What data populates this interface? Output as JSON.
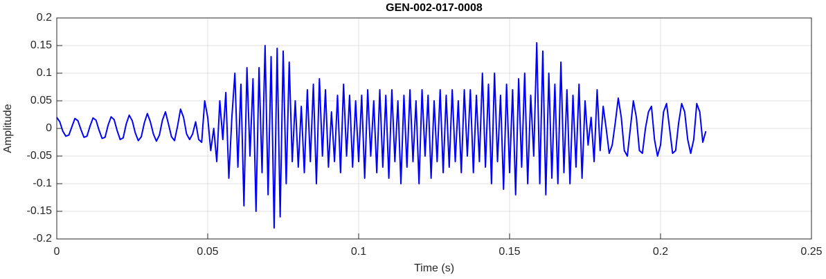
{
  "chart_data": {
    "type": "line",
    "title": "GEN-002-017-0008",
    "x_label": "Time (s)",
    "y_label": "Amplitude",
    "color": "#0000ff",
    "grid": true,
    "xlim": [
      0,
      0.25
    ],
    "xticks": [
      0,
      0.05,
      0.1,
      0.15,
      0.2,
      0.25
    ],
    "ylim": [
      -0.2,
      0.2
    ],
    "yticks": [
      -0.2,
      -0.15,
      -0.1,
      -0.05,
      0,
      0.05,
      0.1,
      0.15,
      0.2
    ],
    "x": [
      0,
      0.001,
      0.002,
      0.003,
      0.004,
      0.005,
      0.006,
      0.007,
      0.008,
      0.009,
      0.01,
      0.011,
      0.012,
      0.013,
      0.014,
      0.015,
      0.016,
      0.017,
      0.018,
      0.019,
      0.02,
      0.021,
      0.022,
      0.023,
      0.024,
      0.025,
      0.026,
      0.027,
      0.028,
      0.029,
      0.03,
      0.031,
      0.032,
      0.033,
      0.034,
      0.035,
      0.036,
      0.037,
      0.038,
      0.039,
      0.04,
      0.041,
      0.042,
      0.043,
      0.044,
      0.045,
      0.046,
      0.047,
      0.048,
      0.049,
      0.05,
      0.051,
      0.052,
      0.053,
      0.054,
      0.055,
      0.056,
      0.057,
      0.058,
      0.059,
      0.06,
      0.061,
      0.062,
      0.063,
      0.064,
      0.065,
      0.066,
      0.067,
      0.068,
      0.069,
      0.07,
      0.071,
      0.072,
      0.073,
      0.074,
      0.075,
      0.076,
      0.077,
      0.078,
      0.079,
      0.08,
      0.081,
      0.082,
      0.083,
      0.084,
      0.085,
      0.086,
      0.087,
      0.088,
      0.089,
      0.09,
      0.091,
      0.092,
      0.093,
      0.094,
      0.095,
      0.096,
      0.097,
      0.098,
      0.099,
      0.1,
      0.101,
      0.102,
      0.103,
      0.104,
      0.105,
      0.106,
      0.107,
      0.108,
      0.109,
      0.11,
      0.111,
      0.112,
      0.113,
      0.114,
      0.115,
      0.116,
      0.117,
      0.118,
      0.119,
      0.12,
      0.121,
      0.122,
      0.123,
      0.124,
      0.125,
      0.126,
      0.127,
      0.128,
      0.129,
      0.13,
      0.131,
      0.132,
      0.133,
      0.134,
      0.135,
      0.136,
      0.137,
      0.138,
      0.139,
      0.14,
      0.141,
      0.142,
      0.143,
      0.144,
      0.145,
      0.146,
      0.147,
      0.148,
      0.149,
      0.15,
      0.151,
      0.152,
      0.153,
      0.154,
      0.155,
      0.156,
      0.157,
      0.158,
      0.159,
      0.16,
      0.161,
      0.162,
      0.163,
      0.164,
      0.165,
      0.166,
      0.167,
      0.168,
      0.169,
      0.17,
      0.171,
      0.172,
      0.173,
      0.174,
      0.175,
      0.176,
      0.177,
      0.178,
      0.179,
      0.18,
      0.181,
      0.182,
      0.183,
      0.184,
      0.185,
      0.186,
      0.187,
      0.188,
      0.189,
      0.19,
      0.191,
      0.192,
      0.193,
      0.194,
      0.195,
      0.196,
      0.197,
      0.198,
      0.199,
      0.2,
      0.201,
      0.202,
      0.203,
      0.204,
      0.205,
      0.206,
      0.207,
      0.208,
      0.209,
      0.21,
      0.211,
      0.212,
      0.213,
      0.214,
      0.215
    ],
    "values": [
      0.02,
      0.012,
      -0.005,
      -0.014,
      -0.012,
      0.003,
      0.018,
      0.014,
      -0.002,
      -0.016,
      -0.014,
      0.004,
      0.019,
      0.015,
      -0.003,
      -0.018,
      -0.016,
      0.006,
      0.021,
      0.016,
      -0.004,
      -0.02,
      -0.017,
      0.008,
      0.024,
      0.014,
      -0.008,
      -0.022,
      -0.015,
      0.01,
      0.027,
      0.012,
      -0.01,
      -0.023,
      -0.012,
      0.015,
      0.03,
      0.008,
      -0.015,
      -0.022,
      0.004,
      0.035,
      0.02,
      -0.01,
      -0.02,
      -0.01,
      0.012,
      -0.02,
      -0.025,
      0.05,
      0.02,
      -0.04,
      0,
      -0.06,
      0.05,
      -0.02,
      0.065,
      -0.09,
      0.02,
      0.1,
      -0.07,
      0.08,
      -0.14,
      0.11,
      -0.05,
      0.09,
      -0.15,
      0.11,
      -0.08,
      0.15,
      -0.12,
      0.13,
      -0.18,
      0.145,
      -0.16,
      0.14,
      -0.1,
      0.12,
      -0.06,
      0.05,
      -0.07,
      0.04,
      -0.08,
      0.07,
      -0.06,
      0.08,
      -0.1,
      0.09,
      -0.05,
      0.07,
      -0.07,
      0.03,
      -0.06,
      0.06,
      -0.08,
      0.08,
      -0.05,
      0.06,
      -0.07,
      0.05,
      -0.06,
      0.06,
      -0.09,
      0.07,
      -0.05,
      0.05,
      -0.08,
      0.07,
      -0.07,
      0.06,
      -0.09,
      0.07,
      -0.06,
      0.05,
      -0.1,
      0.06,
      -0.07,
      0.07,
      -0.06,
      0.05,
      -0.1,
      0.07,
      -0.05,
      0.06,
      -0.09,
      0.05,
      -0.06,
      0.07,
      -0.08,
      0.06,
      -0.07,
      0.07,
      -0.06,
      0.05,
      -0.08,
      0.07,
      -0.05,
      0.07,
      -0.08,
      0.06,
      -0.06,
      0.1,
      -0.07,
      0.08,
      -0.1,
      0.1,
      -0.06,
      0.06,
      -0.11,
      0.08,
      -0.08,
      0.07,
      -0.12,
      0.09,
      -0.07,
      0.1,
      -0.1,
      0.06,
      -0.05,
      0.155,
      -0.1,
      0.14,
      -0.12,
      0.1,
      -0.09,
      0.08,
      -0.1,
      0.12,
      -0.08,
      0.07,
      -0.1,
      0.06,
      -0.07,
      0.08,
      -0.09,
      0.05,
      -0.03,
      0.02,
      -0.06,
      0.07,
      -0.04,
      0.04,
      0,
      -0.045,
      -0.03,
      0.01,
      0.055,
      0.02,
      -0.04,
      -0.05,
      0,
      0.05,
      0.02,
      -0.04,
      -0.045,
      0,
      0.03,
      0.04,
      -0.02,
      -0.05,
      -0.03,
      0.03,
      0.045,
      0,
      -0.045,
      -0.04,
      0.01,
      0.045,
      0.03,
      -0.02,
      -0.045,
      -0.02,
      0.045,
      0.03,
      -0.025,
      -0.005
    ]
  }
}
